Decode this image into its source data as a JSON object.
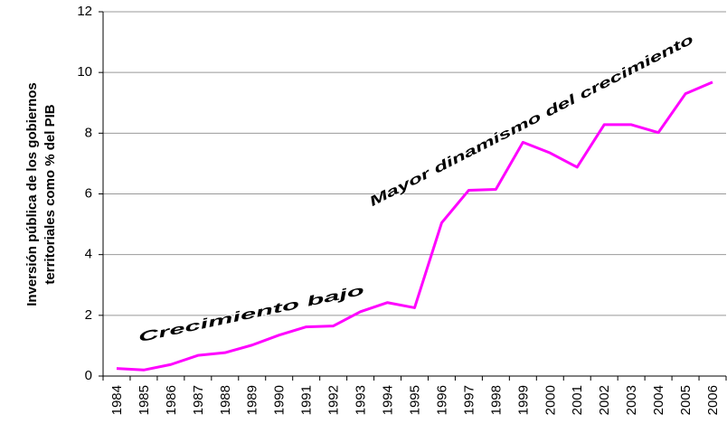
{
  "chart_data": {
    "type": "line",
    "y_label": [
      "Inversión pública de los gobiernos",
      "territoriales como % del PIB"
    ],
    "categories": [
      "1984",
      "1985",
      "1986",
      "1987",
      "1988",
      "1989",
      "1990",
      "1991",
      "1992",
      "1993",
      "1994",
      "1995",
      "1996",
      "1997",
      "1998",
      "1999",
      "2000",
      "2001",
      "2002",
      "2003",
      "2004",
      "2005",
      "2006"
    ],
    "values": [
      0.25,
      0.2,
      0.38,
      0.68,
      0.77,
      1.02,
      1.35,
      1.62,
      1.65,
      2.12,
      2.42,
      2.25,
      5.05,
      6.12,
      6.15,
      7.7,
      7.35,
      6.88,
      8.28,
      8.28,
      8.02,
      9.3,
      9.68
    ],
    "color": "#ff00ff",
    "ylim": [
      0,
      12
    ],
    "yticks": [
      0,
      2,
      4,
      6,
      8,
      10,
      12
    ],
    "grid": true,
    "annotations": [
      "Crecimiento bajo",
      "Mayor dinamismo del crecimiento"
    ]
  }
}
